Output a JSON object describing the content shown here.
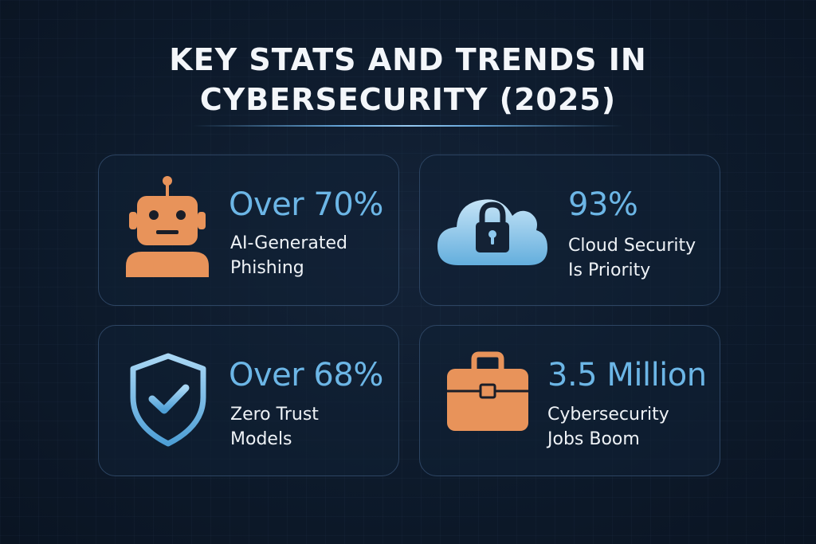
{
  "title": {
    "line1": "KEY STATS AND TRENDS IN",
    "line2": "CYBERSECURITY (2025)"
  },
  "colors": {
    "background": "#0d1a2b",
    "accent_blue": "#6cb6e6",
    "accent_orange": "#e8935a",
    "card_border": "#2d4563"
  },
  "stats": [
    {
      "value": "Over 70%",
      "label_line1": "AI-Generated",
      "label_line2": "Phishing",
      "icon": "robot-icon"
    },
    {
      "value": "93%",
      "label_line1": "Cloud Security",
      "label_line2": "Is Priority",
      "icon": "cloud-lock-icon"
    },
    {
      "value": "Over 68%",
      "label_line1": "Zero Trust",
      "label_line2": "Models",
      "icon": "shield-check-icon"
    },
    {
      "value": "3.5 Million",
      "label_line1": "Cybersecurity",
      "label_line2": "Jobs Boom",
      "icon": "briefcase-icon"
    }
  ]
}
